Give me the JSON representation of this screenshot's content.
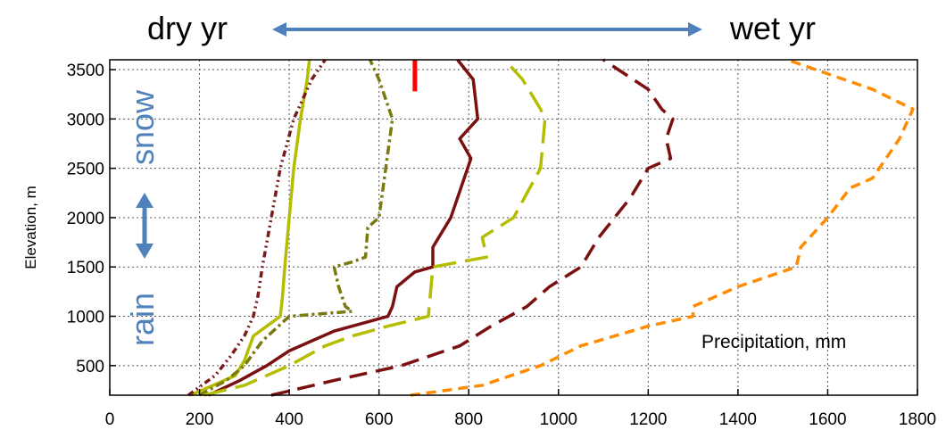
{
  "chart_data": {
    "type": "line",
    "title": "",
    "xlabel": "",
    "ylabel": "Elevation, m",
    "xlim": [
      0,
      1800
    ],
    "ylim": [
      200,
      3600
    ],
    "xticks": [
      0,
      200,
      400,
      600,
      800,
      1000,
      1200,
      1400,
      1600,
      1800
    ],
    "yticks": [
      500,
      1000,
      1500,
      2000,
      2500,
      3000,
      3500
    ],
    "grid": true,
    "annotations": {
      "dry": "dry yr",
      "wet": "wet yr",
      "snow": "snow",
      "rain": "rain",
      "precip": "Precipitation, mm"
    },
    "marker": {
      "x": 680,
      "y_from": 3280,
      "y_to": 3600,
      "color": "#ff0000"
    },
    "series": [
      {
        "color": "#b5bd00",
        "dash": "",
        "width": 3.5,
        "points": [
          [
            180,
            200
          ],
          [
            230,
            300
          ],
          [
            280,
            400
          ],
          [
            300,
            550
          ],
          [
            320,
            800
          ],
          [
            350,
            900
          ],
          [
            380,
            1000
          ],
          [
            385,
            1200
          ],
          [
            390,
            1500
          ],
          [
            400,
            2000
          ],
          [
            410,
            2500
          ],
          [
            425,
            3000
          ],
          [
            440,
            3400
          ],
          [
            445,
            3600
          ]
        ]
      },
      {
        "color": "#7a1a1a",
        "dash": "7 4 2 4 2 4",
        "width": 3.5,
        "points": [
          [
            175,
            200
          ],
          [
            235,
            400
          ],
          [
            270,
            600
          ],
          [
            300,
            800
          ],
          [
            320,
            1000
          ],
          [
            330,
            1200
          ],
          [
            340,
            1500
          ],
          [
            360,
            2000
          ],
          [
            380,
            2500
          ],
          [
            410,
            3000
          ],
          [
            450,
            3400
          ],
          [
            480,
            3600
          ]
        ]
      },
      {
        "color": "#7a7a10",
        "dash": "10 4 3 4",
        "width": 3.5,
        "points": [
          [
            200,
            200
          ],
          [
            260,
            350
          ],
          [
            300,
            500
          ],
          [
            340,
            750
          ],
          [
            400,
            1000
          ],
          [
            540,
            1050
          ],
          [
            525,
            1100
          ],
          [
            510,
            1300
          ],
          [
            500,
            1500
          ],
          [
            540,
            1550
          ],
          [
            570,
            1600
          ],
          [
            575,
            1900
          ],
          [
            600,
            2000
          ],
          [
            615,
            2500
          ],
          [
            630,
            3000
          ],
          [
            600,
            3400
          ],
          [
            580,
            3600
          ]
        ]
      },
      {
        "color": "#7a1010",
        "dash": "",
        "width": 3.5,
        "points": [
          [
            220,
            200
          ],
          [
            290,
            350
          ],
          [
            350,
            500
          ],
          [
            400,
            650
          ],
          [
            500,
            850
          ],
          [
            620,
            1000
          ],
          [
            630,
            1100
          ],
          [
            640,
            1300
          ],
          [
            680,
            1450
          ],
          [
            720,
            1500
          ],
          [
            720,
            1700
          ],
          [
            760,
            2000
          ],
          [
            790,
            2400
          ],
          [
            805,
            2600
          ],
          [
            780,
            2800
          ],
          [
            820,
            3000
          ],
          [
            810,
            3400
          ],
          [
            775,
            3600
          ]
        ]
      },
      {
        "color": "#b5bd00",
        "dash": "26 10",
        "width": 3.5,
        "points": [
          [
            210,
            200
          ],
          [
            300,
            300
          ],
          [
            400,
            500
          ],
          [
            480,
            700
          ],
          [
            540,
            800
          ],
          [
            620,
            900
          ],
          [
            710,
            1000
          ],
          [
            720,
            1500
          ],
          [
            840,
            1600
          ],
          [
            830,
            1800
          ],
          [
            900,
            2000
          ],
          [
            960,
            2500
          ],
          [
            970,
            3000
          ],
          [
            960,
            3100
          ],
          [
            920,
            3400
          ],
          [
            880,
            3600
          ]
        ]
      },
      {
        "color": "#7a1010",
        "dash": "20 10",
        "width": 3.5,
        "points": [
          [
            360,
            200
          ],
          [
            500,
            350
          ],
          [
            650,
            500
          ],
          [
            780,
            700
          ],
          [
            850,
            900
          ],
          [
            930,
            1100
          ],
          [
            980,
            1300
          ],
          [
            1050,
            1500
          ],
          [
            1090,
            1800
          ],
          [
            1160,
            2200
          ],
          [
            1200,
            2500
          ],
          [
            1250,
            2600
          ],
          [
            1240,
            2800
          ],
          [
            1255,
            3000
          ],
          [
            1230,
            3100
          ],
          [
            1200,
            3300
          ],
          [
            1100,
            3600
          ]
        ]
      },
      {
        "color": "#ff8c00",
        "dash": "11 7",
        "width": 3.5,
        "points": [
          [
            670,
            200
          ],
          [
            830,
            300
          ],
          [
            960,
            500
          ],
          [
            1050,
            700
          ],
          [
            1200,
            900
          ],
          [
            1300,
            1000
          ],
          [
            1300,
            1100
          ],
          [
            1400,
            1300
          ],
          [
            1530,
            1500
          ],
          [
            1540,
            1700
          ],
          [
            1600,
            2000
          ],
          [
            1650,
            2300
          ],
          [
            1700,
            2400
          ],
          [
            1730,
            2600
          ],
          [
            1760,
            2800
          ],
          [
            1790,
            3100
          ],
          [
            1700,
            3300
          ],
          [
            1510,
            3600
          ]
        ]
      }
    ]
  }
}
